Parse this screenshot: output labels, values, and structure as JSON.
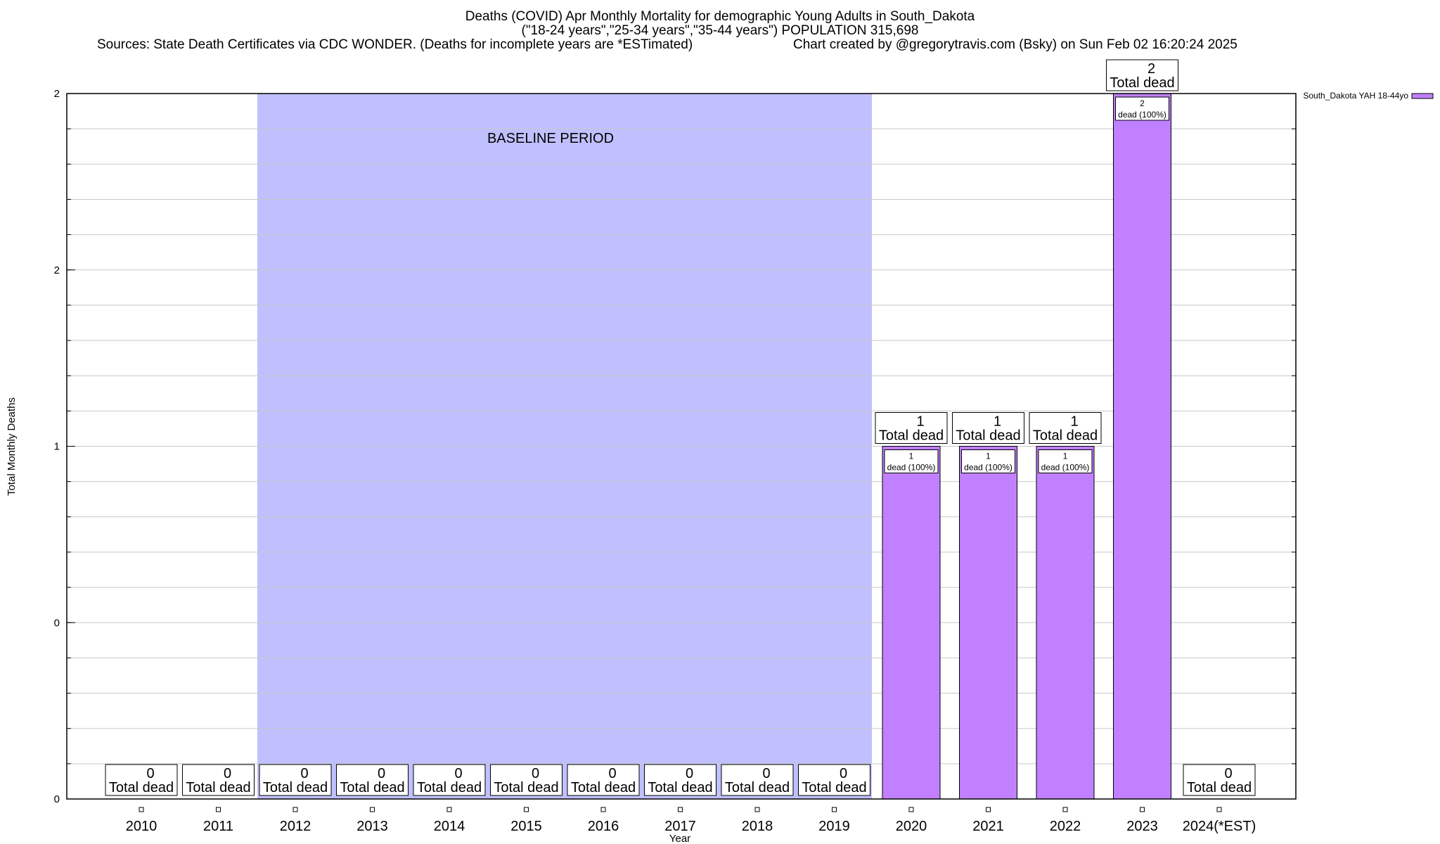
{
  "header": {
    "title_line1": "Deaths (COVID) Apr Monthly Mortality for demographic Young Adults in South_Dakota",
    "title_line2": "(\"18-24 years\",\"25-34 years\",\"35-44 years\") POPULATION 315,698",
    "sources": "Sources: State Death Certificates via CDC WONDER. (Deaths for incomplete years are *ESTimated)",
    "credit": "Chart created by @gregorytravis.com (Bsky) on Sun Feb 02 16:20:24 2025"
  },
  "chart_data": {
    "type": "bar",
    "xlabel": "Year",
    "ylabel": "Total Monthly Deaths",
    "ylim": [
      0,
      2
    ],
    "y_tick_labels": [
      "0",
      "0",
      "1",
      "2",
      "2"
    ],
    "grid": true,
    "legend_position": "top-right",
    "categories": [
      "2010",
      "2011",
      "2012",
      "2013",
      "2014",
      "2015",
      "2016",
      "2017",
      "2018",
      "2019",
      "2020",
      "2021",
      "2022",
      "2023",
      "2024(*EST)"
    ],
    "series": [
      {
        "name": "South_Dakota YAH 18-44yo",
        "color": "#c080ff",
        "values": [
          0,
          0,
          0,
          0,
          0,
          0,
          0,
          0,
          0,
          0,
          1,
          1,
          1,
          2,
          0
        ]
      }
    ],
    "total_label_suffix": "Total dead",
    "inner_label_template": "dead (100%)",
    "baseline": {
      "label": "BASELINE PERIOD",
      "from": "2012",
      "to": "2019",
      "color": "#c0c0ff"
    }
  }
}
